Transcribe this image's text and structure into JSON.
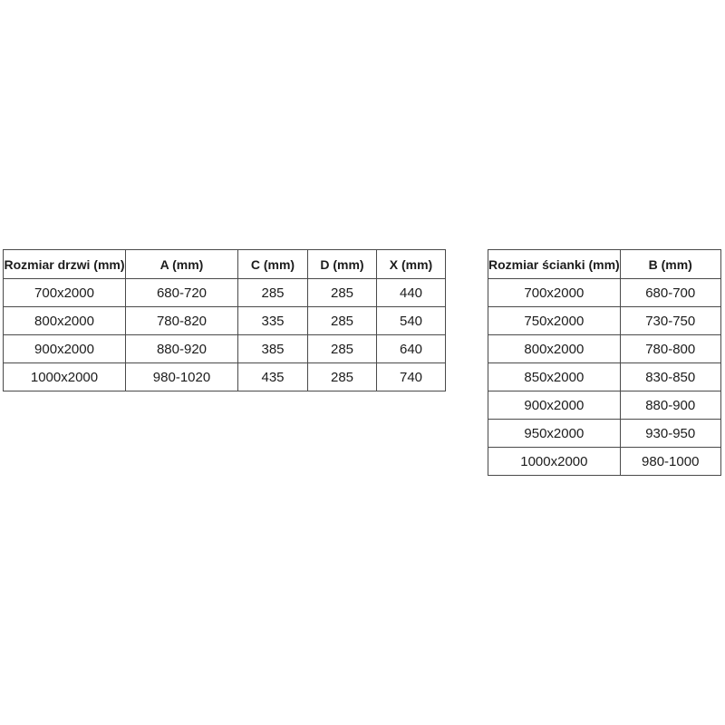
{
  "colors": {
    "background": "#ffffff",
    "table_border": "#4a4a4a",
    "text": "#1c1c1c"
  },
  "tables": {
    "doors": {
      "headers": [
        "Rozmiar drzwi (mm)",
        "A (mm)",
        "C (mm)",
        "D (mm)",
        "X (mm)"
      ],
      "rows": [
        [
          "700x2000",
          "680-720",
          "285",
          "285",
          "440"
        ],
        [
          "800x2000",
          "780-820",
          "335",
          "285",
          "540"
        ],
        [
          "900x2000",
          "880-920",
          "385",
          "285",
          "640"
        ],
        [
          "1000x2000",
          "980-1020",
          "435",
          "285",
          "740"
        ]
      ]
    },
    "walls": {
      "headers": [
        "Rozmiar ścianki (mm)",
        "B (mm)"
      ],
      "rows": [
        [
          "700x2000",
          "680-700"
        ],
        [
          "750x2000",
          "730-750"
        ],
        [
          "800x2000",
          "780-800"
        ],
        [
          "850x2000",
          "830-850"
        ],
        [
          "900x2000",
          "880-900"
        ],
        [
          "950x2000",
          "930-950"
        ],
        [
          "1000x2000",
          "980-1000"
        ]
      ]
    }
  }
}
